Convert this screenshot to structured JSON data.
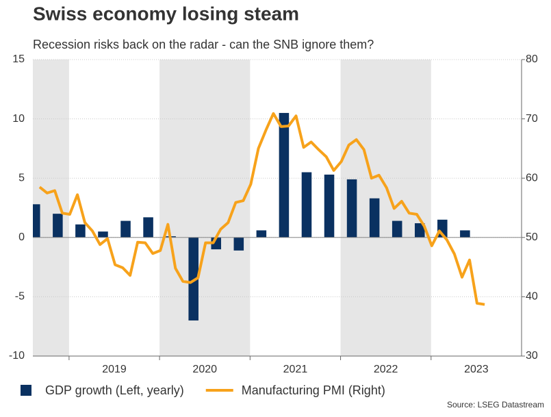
{
  "chart_data": {
    "type": "combo",
    "title": "Swiss economy losing steam",
    "subtitle": "Recession risks back on the radar - can the SNB ignore them?",
    "source": "Source: LSEG Datastream",
    "xlim": [
      2018.6,
      2024.0
    ],
    "xticks": [
      2019,
      2020,
      2021,
      2022,
      2023
    ],
    "ylim": [
      -10,
      15
    ],
    "yticks": [
      -10,
      -5,
      0,
      5,
      10,
      15
    ],
    "y2lim": [
      30,
      80
    ],
    "y2ticks": [
      30,
      40,
      50,
      60,
      70,
      80
    ],
    "grid": true,
    "shading": "#e6e6e6",
    "series": [
      {
        "name": "GDP growth (Left, yearly)",
        "type": "bar",
        "color": "#0a3161",
        "x": [
          2018.625,
          2018.875,
          2019.125,
          2019.375,
          2019.625,
          2019.875,
          2020.125,
          2020.375,
          2020.625,
          2020.875,
          2021.125,
          2021.375,
          2021.625,
          2021.875,
          2022.125,
          2022.375,
          2022.625,
          2022.875,
          2023.125,
          2023.375
        ],
        "values": [
          2.8,
          2.0,
          1.1,
          0.5,
          1.4,
          1.7,
          0.1,
          -7.0,
          -1.0,
          -1.1,
          0.6,
          10.5,
          5.5,
          5.3,
          4.9,
          3.3,
          1.4,
          1.2,
          1.5,
          0.6
        ]
      },
      {
        "name": "Manufacturing PMI (Right)",
        "type": "line",
        "axis": "y2",
        "color": "#f7a21b",
        "x": [
          2018.675,
          2018.758,
          2018.842,
          2018.925,
          2019.008,
          2019.092,
          2019.175,
          2019.258,
          2019.342,
          2019.425,
          2019.508,
          2019.592,
          2019.675,
          2019.758,
          2019.842,
          2019.925,
          2020.008,
          2020.092,
          2020.175,
          2020.258,
          2020.342,
          2020.425,
          2020.508,
          2020.592,
          2020.675,
          2020.758,
          2020.842,
          2020.925,
          2021.008,
          2021.092,
          2021.175,
          2021.258,
          2021.342,
          2021.425,
          2021.508,
          2021.592,
          2021.675,
          2021.758,
          2021.842,
          2021.925,
          2022.008,
          2022.092,
          2022.175,
          2022.258,
          2022.342,
          2022.425,
          2022.508,
          2022.592,
          2022.675,
          2022.758,
          2022.842,
          2022.925,
          2023.008,
          2023.092,
          2023.175,
          2023.258,
          2023.342,
          2023.425,
          2023.508,
          2023.592
        ],
        "values": [
          58.5,
          57.5,
          57.9,
          54.1,
          53.9,
          57.2,
          52.5,
          51.1,
          48.8,
          49.8,
          45.4,
          44.9,
          43.6,
          49.2,
          49.1,
          47.3,
          47.8,
          52.2,
          44.8,
          42.6,
          42.4,
          43.2,
          49.1,
          49.1,
          51.4,
          52.5,
          55.9,
          56.2,
          59.0,
          65.0,
          68.1,
          70.9,
          68.7,
          68.8,
          70.5,
          65.2,
          66.1,
          64.8,
          63.6,
          61.3,
          62.8,
          65.6,
          66.5,
          64.8,
          60.0,
          60.5,
          58.4,
          54.9,
          56.1,
          54.1,
          53.9,
          51.9,
          48.6,
          51.1,
          49.6,
          47.2,
          43.3,
          46.2,
          38.9,
          38.7
        ]
      }
    ]
  }
}
